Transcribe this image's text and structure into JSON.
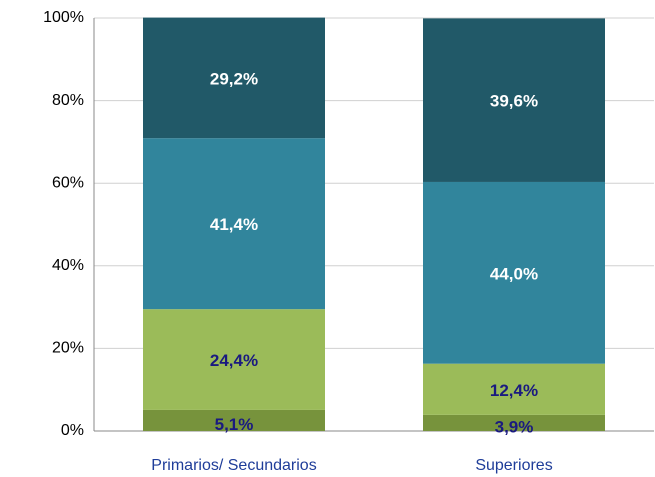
{
  "chart_data": {
    "type": "stacked_bar",
    "categories": [
      "Primarios/ Secundarios",
      "Superiores"
    ],
    "series": [
      {
        "color": "#77933c",
        "label_color": "#1a1a80",
        "values": [
          5.1,
          3.9
        ],
        "value_labels": [
          "5,1%",
          "3,9%"
        ]
      },
      {
        "color": "#9bbb59",
        "label_color": "#1a1a80",
        "values": [
          24.4,
          12.4
        ],
        "value_labels": [
          "24,4%",
          "12,4%"
        ]
      },
      {
        "color": "#31859c",
        "label_color": "#ffffff",
        "values": [
          41.4,
          44.0
        ],
        "value_labels": [
          "41,4%",
          "44,0%"
        ]
      },
      {
        "color": "#215968",
        "label_color": "#ffffff",
        "values": [
          29.2,
          39.6
        ],
        "value_labels": [
          "29,2%",
          "39,6%"
        ]
      }
    ],
    "ylim": [
      0,
      100
    ],
    "yticks": [
      {
        "value": 0,
        "label": "0%"
      },
      {
        "value": 20,
        "label": "20%"
      },
      {
        "value": 40,
        "label": "40%"
      },
      {
        "value": 60,
        "label": "60%"
      },
      {
        "value": 80,
        "label": "80%"
      },
      {
        "value": 100,
        "label": "100%"
      }
    ],
    "grid": true
  }
}
